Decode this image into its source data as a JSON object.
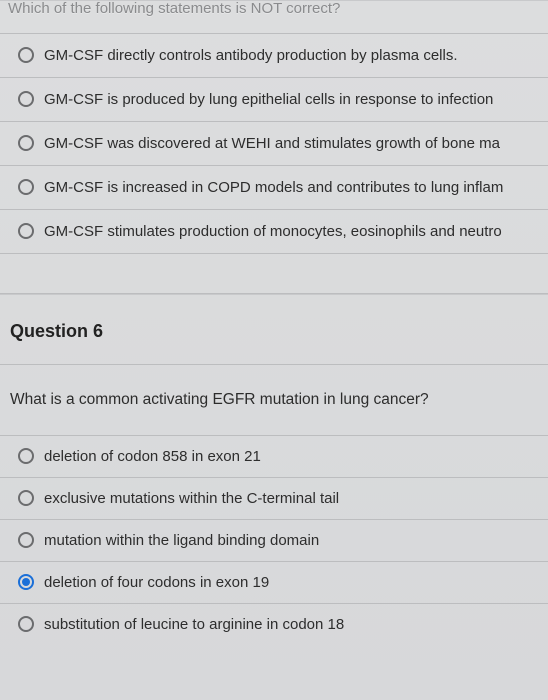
{
  "q5": {
    "stem": "Which of the following statements is NOT correct?",
    "options": [
      {
        "label": "GM-CSF directly controls antibody production by plasma cells.",
        "selected": false
      },
      {
        "label": "GM-CSF is produced by lung epithelial cells in response to infection",
        "selected": false
      },
      {
        "label": "GM-CSF was discovered at WEHI and stimulates growth of bone ma",
        "selected": false
      },
      {
        "label": "GM-CSF is increased in COPD models and contributes to lung inflam",
        "selected": false
      },
      {
        "label": "GM-CSF stimulates production of monocytes, eosinophils and neutro",
        "selected": false
      }
    ]
  },
  "q6": {
    "title": "Question 6",
    "stem": "What is a common activating EGFR mutation in lung cancer?",
    "options": [
      {
        "label": "deletion of codon 858 in exon 21",
        "selected": false
      },
      {
        "label": "exclusive mutations within the C-terminal tail",
        "selected": false
      },
      {
        "label": "mutation within the ligand binding domain",
        "selected": false
      },
      {
        "label": "deletion of four codons in exon 19",
        "selected": true
      },
      {
        "label": "substitution of leucine to arginine in codon 18",
        "selected": false
      }
    ]
  }
}
